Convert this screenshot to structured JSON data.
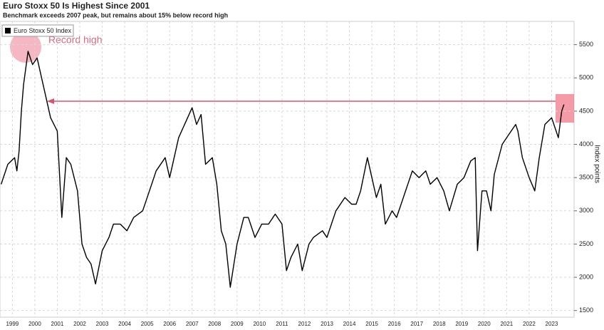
{
  "chart_data": {
    "type": "line",
    "title": "Euro Stoxx 50 Is Highest Since 2001",
    "subtitle": "Benchmark exceeds 2007 peak, but remains about 15% below record high",
    "y_label": "Index points",
    "annotation": "Record high",
    "legend": "top-left",
    "grid": true,
    "xlim": [
      1998.95,
      2024.5
    ],
    "ylim": [
      1400,
      5850
    ],
    "yticks": [
      1500,
      2000,
      2500,
      3000,
      3500,
      4000,
      4500,
      5000,
      5500
    ],
    "xticks": [
      {
        "value": 1999.5,
        "label": "1999"
      },
      {
        "value": 2000.5,
        "label": "2000"
      },
      {
        "value": 2001.5,
        "label": "2001"
      },
      {
        "value": 2002.5,
        "label": "2002"
      },
      {
        "value": 2003.5,
        "label": "2003"
      },
      {
        "value": 2004.5,
        "label": "2004"
      },
      {
        "value": 2005.5,
        "label": "2005"
      },
      {
        "value": 2006.5,
        "label": "2006"
      },
      {
        "value": 2007.5,
        "label": "2007"
      },
      {
        "value": 2008.5,
        "label": "2008"
      },
      {
        "value": 2009.5,
        "label": "2009"
      },
      {
        "value": 2010.5,
        "label": "2010"
      },
      {
        "value": 2011.5,
        "label": "2011"
      },
      {
        "value": 2012.5,
        "label": "2012"
      },
      {
        "value": 2013.5,
        "label": "2013"
      },
      {
        "value": 2014.5,
        "label": "2014"
      },
      {
        "value": 2015.5,
        "label": "2015"
      },
      {
        "value": 2016.5,
        "label": "2016"
      },
      {
        "value": 2017.5,
        "label": "2017"
      },
      {
        "value": 2018.5,
        "label": "2018"
      },
      {
        "value": 2019.5,
        "label": "2019"
      },
      {
        "value": 2020.5,
        "label": "2020"
      },
      {
        "value": 2021.5,
        "label": "2021"
      },
      {
        "value": 2022.5,
        "label": "2022"
      },
      {
        "value": 2023.5,
        "label": "2023"
      }
    ],
    "x": [
      1999.0,
      1999.3,
      1999.6,
      1999.7,
      1999.8,
      1999.9,
      2000.0,
      2000.2,
      2000.4,
      2000.6,
      2000.8,
      2001.0,
      2001.2,
      2001.5,
      2001.7,
      2001.9,
      2002.1,
      2002.4,
      2002.6,
      2002.8,
      2003.0,
      2003.2,
      2003.5,
      2003.8,
      2004.0,
      2004.3,
      2004.6,
      2004.9,
      2005.3,
      2005.6,
      2005.9,
      2006.3,
      2006.5,
      2006.9,
      2007.3,
      2007.5,
      2007.7,
      2007.9,
      2008.1,
      2008.4,
      2008.6,
      2008.8,
      2009.0,
      2009.2,
      2009.5,
      2009.8,
      2010.0,
      2010.3,
      2010.6,
      2010.9,
      2011.2,
      2011.5,
      2011.7,
      2011.9,
      2012.2,
      2012.4,
      2012.7,
      2012.9,
      2013.3,
      2013.5,
      2013.9,
      2014.3,
      2014.6,
      2014.8,
      2015.0,
      2015.3,
      2015.5,
      2015.7,
      2015.9,
      2016.1,
      2016.4,
      2016.6,
      2016.9,
      2017.3,
      2017.6,
      2017.9,
      2018.1,
      2018.4,
      2018.7,
      2018.95,
      2019.3,
      2019.6,
      2019.9,
      2020.1,
      2020.2,
      2020.4,
      2020.6,
      2020.8,
      2020.95,
      2021.3,
      2021.6,
      2021.9,
      2022.0,
      2022.2,
      2022.5,
      2022.75,
      2022.95,
      2023.2,
      2023.5,
      2023.8,
      2023.95,
      2024.05
    ],
    "series": [
      {
        "name": "Euro Stoxx 50 Index",
        "color": "#000000",
        "values": [
          3400,
          3700,
          3800,
          3600,
          3900,
          4500,
          4900,
          5400,
          5200,
          5300,
          5000,
          4700,
          4400,
          4200,
          2900,
          3800,
          3700,
          3300,
          2500,
          2300,
          2200,
          1900,
          2400,
          2600,
          2800,
          2800,
          2700,
          2900,
          3000,
          3300,
          3600,
          3800,
          3500,
          4100,
          4400,
          4550,
          4300,
          4450,
          3700,
          3800,
          3400,
          2700,
          2500,
          1850,
          2500,
          2900,
          2900,
          2600,
          2800,
          2800,
          2950,
          2800,
          2100,
          2300,
          2500,
          2100,
          2500,
          2600,
          2700,
          2600,
          3000,
          3200,
          3100,
          3100,
          3300,
          3800,
          3500,
          3200,
          3400,
          2800,
          3000,
          2900,
          3200,
          3600,
          3500,
          3600,
          3400,
          3500,
          3300,
          3000,
          3400,
          3500,
          3750,
          3800,
          2400,
          3300,
          3300,
          3000,
          3550,
          4000,
          4150,
          4300,
          4200,
          3800,
          3500,
          3300,
          3800,
          4300,
          4400,
          4100,
          4500,
          4600
        ]
      }
    ]
  }
}
